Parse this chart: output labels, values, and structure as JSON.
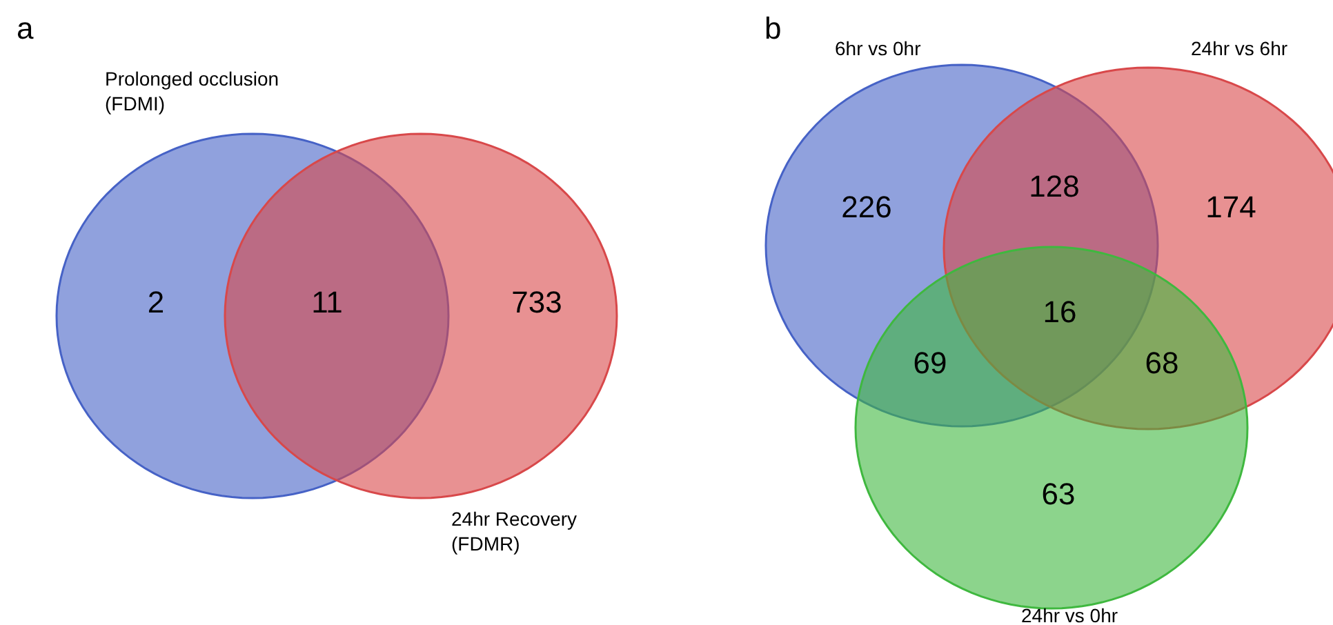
{
  "chart_data": [
    {
      "type": "other",
      "title": "a",
      "annotations": [
        "Prolonged occlusion\n(FDMI)",
        "24hr Recovery\n(FDMR)"
      ],
      "categories": [
        null,
        null,
        null
      ],
      "values": [
        2,
        11,
        733
      ],
      "data_labels": true
    },
    {
      "type": "other",
      "title": "b",
      "annotations": [
        "6hr vs 0hr",
        "24hr vs 6hr",
        "24hr vs 0hr"
      ],
      "categories": [
        null,
        null,
        null,
        null,
        null,
        null,
        null
      ],
      "values": [
        226,
        128,
        174,
        16,
        69,
        68,
        63
      ],
      "data_labels": true
    }
  ]
}
